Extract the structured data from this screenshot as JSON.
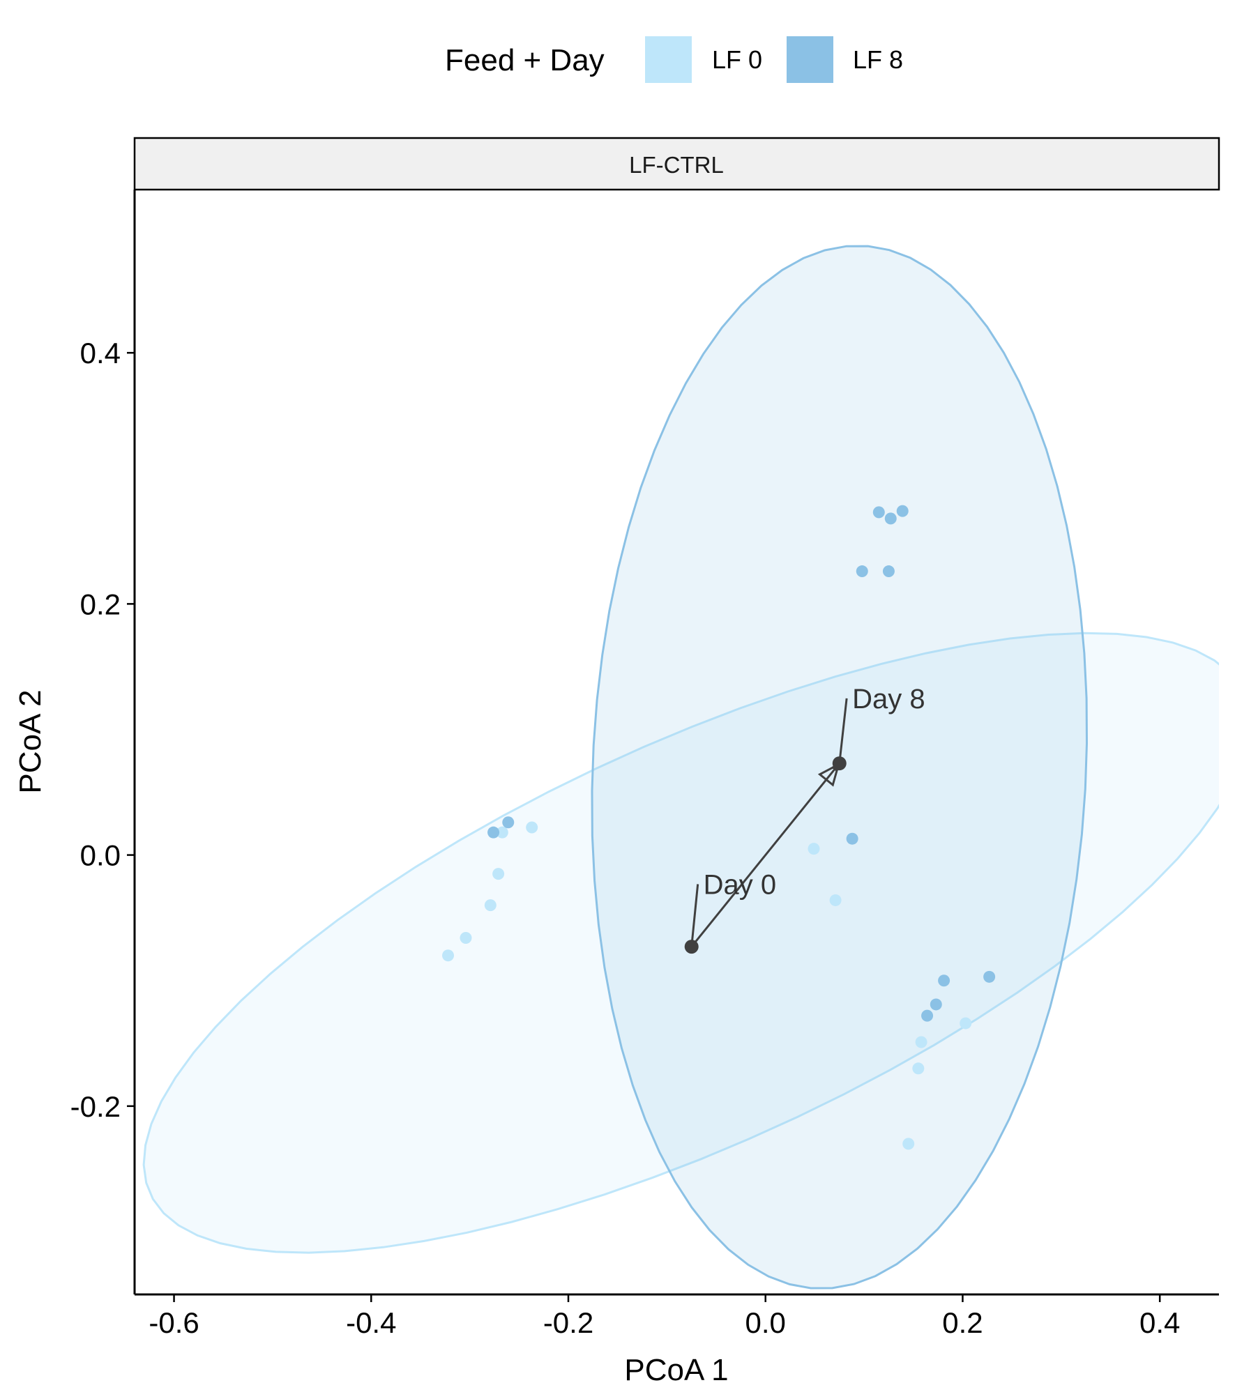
{
  "chart_data": {
    "type": "scatter",
    "legend": {
      "title": "Feed + Day",
      "position": "top",
      "entries": [
        {
          "label": "LF 0",
          "color": "#BEE6FA"
        },
        {
          "label": "LF 8",
          "color": "#8BC1E5"
        }
      ]
    },
    "facet_label": "LF-CTRL",
    "xlabel": "PCoA 1",
    "ylabel": "PCoA 2",
    "xlim": [
      -0.64,
      0.46
    ],
    "ylim": [
      -0.35,
      0.53
    ],
    "xticks": [
      {
        "value": -0.6,
        "label": "-0.6"
      },
      {
        "value": -0.4,
        "label": "-0.4"
      },
      {
        "value": -0.2,
        "label": "-0.2"
      },
      {
        "value": 0.0,
        "label": "0.0"
      },
      {
        "value": 0.2,
        "label": "0.2"
      },
      {
        "value": 0.4,
        "label": "0.4"
      }
    ],
    "yticks": [
      {
        "value": -0.2,
        "label": "-0.2"
      },
      {
        "value": 0.0,
        "label": "0.0"
      },
      {
        "value": 0.2,
        "label": "0.2"
      },
      {
        "value": 0.4,
        "label": "0.4"
      }
    ],
    "grid": false,
    "series": [
      {
        "name": "LF 0",
        "color": "#BEE6FA",
        "points": [
          {
            "x": -0.237,
            "y": 0.022
          },
          {
            "x": -0.267,
            "y": 0.018
          },
          {
            "x": -0.271,
            "y": -0.015
          },
          {
            "x": -0.279,
            "y": -0.04
          },
          {
            "x": -0.304,
            "y": -0.066
          },
          {
            "x": -0.322,
            "y": -0.08
          },
          {
            "x": 0.049,
            "y": 0.005
          },
          {
            "x": 0.071,
            "y": -0.036
          },
          {
            "x": 0.203,
            "y": -0.134
          },
          {
            "x": 0.158,
            "y": -0.149
          },
          {
            "x": 0.155,
            "y": -0.17
          },
          {
            "x": 0.145,
            "y": -0.23
          }
        ],
        "ellipse": {
          "center": [
            -0.07,
            -0.07
          ],
          "semi_major": 0.59,
          "semi_minor": 0.165,
          "angle_deg": 18.9
        }
      },
      {
        "name": "LF 8",
        "color": "#8BC1E5",
        "points": [
          {
            "x": -0.276,
            "y": 0.018
          },
          {
            "x": -0.261,
            "y": 0.026
          },
          {
            "x": 0.115,
            "y": 0.273
          },
          {
            "x": 0.127,
            "y": 0.268
          },
          {
            "x": 0.139,
            "y": 0.274
          },
          {
            "x": 0.098,
            "y": 0.226
          },
          {
            "x": 0.125,
            "y": 0.226
          },
          {
            "x": 0.088,
            "y": 0.013
          },
          {
            "x": 0.181,
            "y": -0.1
          },
          {
            "x": 0.227,
            "y": -0.097
          },
          {
            "x": 0.173,
            "y": -0.119
          },
          {
            "x": 0.164,
            "y": -0.128
          }
        ],
        "ellipse": {
          "center": [
            0.075,
            0.07
          ],
          "semi_major": 0.416,
          "semi_minor": 0.25,
          "angle_deg": 86
        }
      }
    ],
    "centroids": [
      {
        "label": "Day 0",
        "x": -0.075,
        "y": -0.073,
        "label_x": -0.063,
        "label_y": -0.031
      },
      {
        "label": "Day 8",
        "x": 0.075,
        "y": 0.073,
        "label_x": 0.088,
        "label_y": 0.117
      }
    ],
    "centroid_color": "#404040",
    "arrow": {
      "from": "Day 0",
      "to": "Day 8"
    }
  }
}
